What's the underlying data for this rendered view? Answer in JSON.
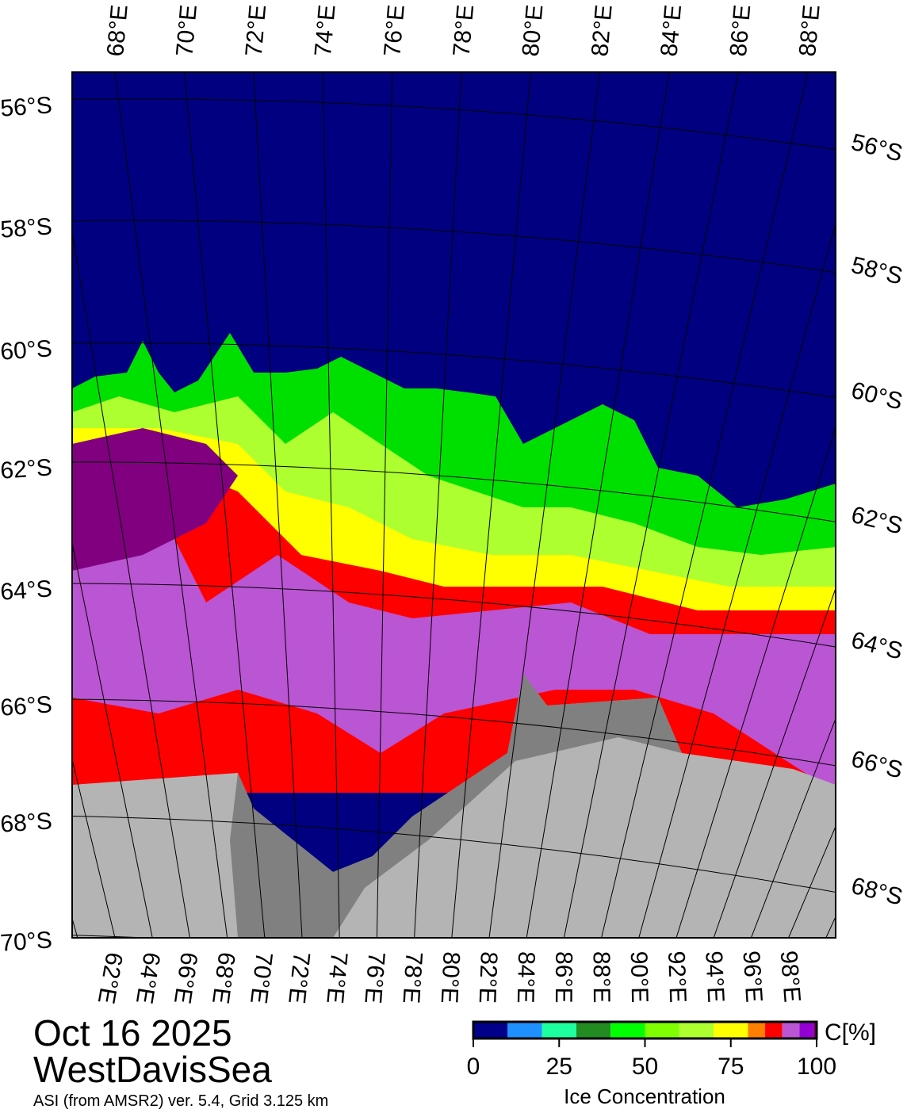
{
  "map": {
    "title_date": "Oct 16 2025",
    "region": "WestDavisSea",
    "subtitle": "ASI (from AMSR2) ver. 5.4,  Grid 3.125 km",
    "top_lon_labels": [
      "68°E",
      "70°E",
      "72°E",
      "74°E",
      "76°E",
      "78°E",
      "80°E",
      "82°E",
      "84°E",
      "86°E",
      "88°E"
    ],
    "bottom_lon_labels": [
      "62°E",
      "64°E",
      "66°E",
      "68°E",
      "70°E",
      "72°E",
      "74°E",
      "76°E",
      "78°E",
      "80°E",
      "82°E",
      "84°E",
      "86°E",
      "88°E",
      "90°E",
      "92°E",
      "94°E",
      "96°E",
      "98°E"
    ],
    "left_lat_labels": [
      "56°S",
      "58°S",
      "60°S",
      "62°S",
      "64°S",
      "66°S",
      "68°S",
      "70°S"
    ],
    "right_lat_labels": [
      "56°S",
      "58°S",
      "60°S",
      "62°S",
      "64°S",
      "66°S",
      "68°S"
    ],
    "colors": {
      "open_water": "#000080",
      "land": "#b4b4b4",
      "ice_shelf": "#808080"
    }
  },
  "colorbar": {
    "unit_label": "C[%]",
    "axis_label": "Ice Concentration",
    "tick_labels": [
      "0",
      "25",
      "50",
      "75",
      "100"
    ],
    "ticks": [
      0,
      25,
      50,
      75,
      100
    ],
    "range": [
      0,
      100
    ],
    "bins": [
      {
        "from": 0,
        "to": 10,
        "color": "#00008b"
      },
      {
        "from": 10,
        "to": 20,
        "color": "#1e90ff"
      },
      {
        "from": 20,
        "to": 30,
        "color": "#1effa0"
      },
      {
        "from": 30,
        "to": 40,
        "color": "#228b22"
      },
      {
        "from": 40,
        "to": 50,
        "color": "#00ff00"
      },
      {
        "from": 50,
        "to": 60,
        "color": "#7fff00"
      },
      {
        "from": 60,
        "to": 70,
        "color": "#adff2f"
      },
      {
        "from": 70,
        "to": 80,
        "color": "#ffff00"
      },
      {
        "from": 80,
        "to": 85,
        "color": "#ff8000"
      },
      {
        "from": 85,
        "to": 90,
        "color": "#ff0000"
      },
      {
        "from": 90,
        "to": 95,
        "color": "#ba55d3"
      },
      {
        "from": 95,
        "to": 99,
        "color": "#9400d3"
      },
      {
        "from": 99,
        "to": 100,
        "color": "#800080"
      }
    ]
  }
}
